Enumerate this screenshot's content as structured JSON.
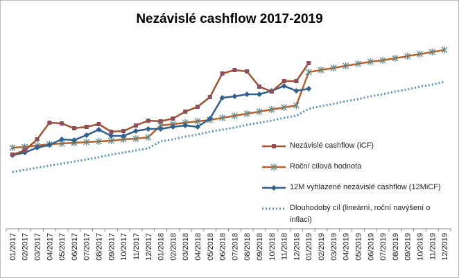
{
  "chart_data": {
    "type": "line",
    "title": "Nezávislé cashflow 2017-2019",
    "categories": [
      "01/2017",
      "02/2017",
      "03/2017",
      "04/2017",
      "05/2017",
      "06/2017",
      "07/2017",
      "08/2017",
      "09/2017",
      "10/2017",
      "11/2017",
      "12/2017",
      "01/2018",
      "02/2018",
      "03/2018",
      "04/2018",
      "05/2018",
      "06/2018",
      "07/2018",
      "08/2018",
      "09/2018",
      "10/2018",
      "11/2018",
      "12/2018",
      "01/2019",
      "02/2019",
      "03/2019",
      "04/2019",
      "05/2019",
      "06/2019",
      "07/2019",
      "08/2019",
      "09/2019",
      "10/2019",
      "11/2019",
      "12/2019"
    ],
    "ylim": [
      0,
      285
    ],
    "series": [
      {
        "name": "Nezávislé cashflow (iCF)",
        "color": "#a0522d",
        "marker": "square",
        "marker_color": "#8e4d5c",
        "values": [
          107,
          113,
          129,
          153,
          152,
          145,
          147,
          151,
          140,
          141,
          149,
          156,
          155,
          159,
          169,
          176,
          190,
          224,
          229,
          227,
          205,
          198,
          213,
          213,
          239,
          null,
          null,
          null,
          null,
          null,
          null,
          null,
          null,
          null,
          null,
          null
        ]
      },
      {
        "name": "Roční cílová hodnota",
        "color": "#b5612a",
        "marker": "star",
        "marker_color": "#5f8a8b",
        "values": [
          117,
          118,
          120,
          122,
          123,
          124,
          125,
          126,
          127,
          129,
          130,
          132,
          149,
          151,
          153,
          155,
          157,
          160,
          163,
          166,
          169,
          172,
          175,
          178,
          226,
          229,
          232,
          235,
          238,
          241,
          243,
          246,
          249,
          252,
          255,
          258
        ]
      },
      {
        "name": "12M vyhlazené nezávislé cashflow (12MiCF)",
        "color": "#2f5f8f",
        "marker": "diamond",
        "marker_color": "#2f5f8f",
        "values": [
          106,
          110,
          117,
          121,
          129,
          128,
          135,
          143,
          134,
          134,
          141,
          144,
          144,
          147,
          149,
          147,
          159,
          189,
          191,
          194,
          194,
          199,
          206,
          199,
          202,
          null,
          null,
          null,
          null,
          null,
          null,
          null,
          null,
          null,
          null,
          null
        ]
      },
      {
        "name": "Dlouhodobý cíl (lineární, roční navýšení o inflaci)",
        "color": "#4f8fc4",
        "dash": "dotted",
        "values": [
          82,
          85,
          88,
          91,
          94,
          97,
          100,
          103,
          107,
          110,
          113,
          116,
          126,
          129,
          133,
          136,
          140,
          143,
          146,
          150,
          153,
          156,
          160,
          163,
          173,
          177,
          180,
          184,
          187,
          191,
          194,
          198,
          201,
          205,
          208,
          212
        ]
      }
    ]
  }
}
